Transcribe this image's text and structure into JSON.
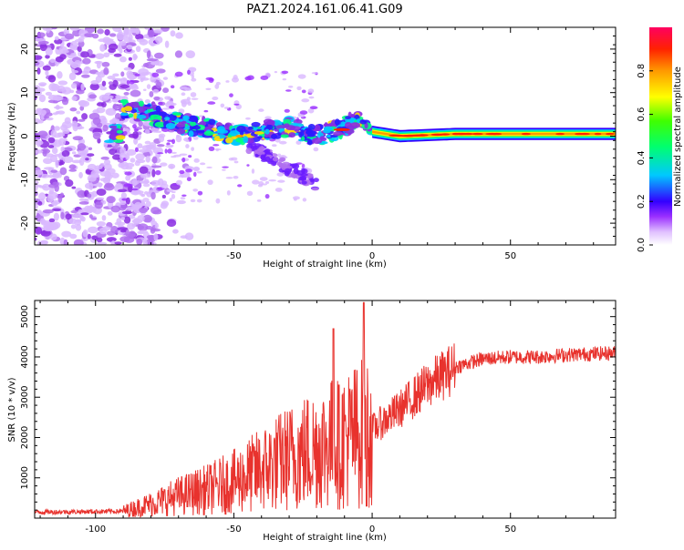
{
  "title": "PAZ1.2024.161.06.41.G09",
  "colors": {
    "snr_line": "#e8322d",
    "frame": "#000000"
  },
  "chart_data": [
    {
      "type": "heatmap",
      "xlabel": "Height of straight line (km)",
      "ylabel": "Frequency (Hz)",
      "xlim": [
        -122,
        88
      ],
      "ylim": [
        -25,
        25
      ],
      "xticks": [
        -100,
        -50,
        0,
        50
      ],
      "yticks": [
        -20,
        -10,
        0,
        10,
        20
      ],
      "colorbar": {
        "label": "Normalized spectral amplitude",
        "range": [
          0,
          1
        ],
        "ticks": [
          "0.0",
          "0.2",
          "0.4",
          "0.6",
          "0.8"
        ],
        "colormap": "gist_rainbow_reversed"
      },
      "features": {
        "main_trace_freq_hz": [
          [
            -90,
            6.5
          ],
          [
            -80,
            5
          ],
          [
            -70,
            3
          ],
          [
            -60,
            2
          ],
          [
            -50,
            0
          ],
          [
            -40,
            1.5
          ],
          [
            -30,
            2
          ],
          [
            -20,
            0
          ],
          [
            -12,
            1.5
          ],
          [
            -5,
            4
          ],
          [
            0,
            1
          ],
          [
            10,
            0
          ],
          [
            30,
            0.5
          ],
          [
            50,
            0.5
          ],
          [
            88,
            0.5
          ]
        ],
        "noise_region_km": [
          -122,
          -85
        ]
      }
    },
    {
      "type": "line",
      "xlabel": "Height of straight line (km)",
      "ylabel": "SNR (10 * v/v)",
      "xlim": [
        -122,
        88
      ],
      "ylim": [
        0,
        5400
      ],
      "xticks": [
        -100,
        -50,
        0,
        50
      ],
      "yticks": [
        1000,
        2000,
        3000,
        4000,
        5000
      ],
      "trend_points": [
        [
          -122,
          150
        ],
        [
          -90,
          170
        ],
        [
          -80,
          350
        ],
        [
          -70,
          550
        ],
        [
          -60,
          700
        ],
        [
          -50,
          900
        ],
        [
          -40,
          1200
        ],
        [
          -30,
          1500
        ],
        [
          -20,
          1750
        ],
        [
          -10,
          1950
        ],
        [
          0,
          2200
        ],
        [
          10,
          2700
        ],
        [
          20,
          3300
        ],
        [
          30,
          3750
        ],
        [
          40,
          3950
        ],
        [
          50,
          4000
        ],
        [
          60,
          4000
        ],
        [
          70,
          4050
        ],
        [
          88,
          4100
        ]
      ],
      "spikes": [
        [
          -14,
          4700
        ],
        [
          -12,
          3300
        ],
        [
          -3,
          5350
        ],
        [
          -2,
          300
        ]
      ]
    }
  ]
}
